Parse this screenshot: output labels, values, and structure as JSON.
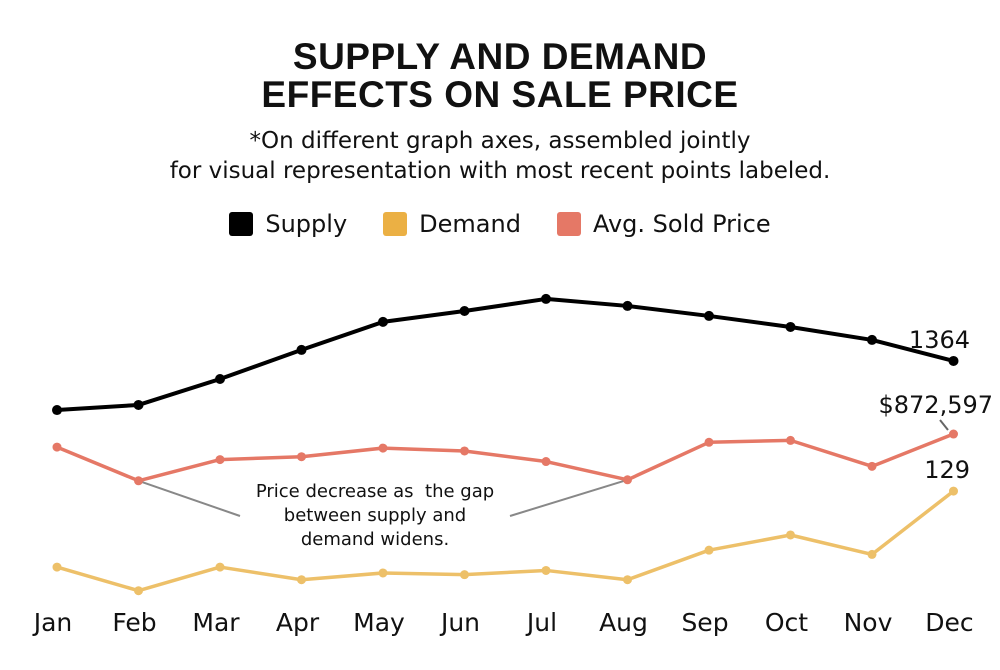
{
  "chart_data": {
    "type": "line",
    "title": "SUPPLY AND DEMAND EFFECTS ON SALE PRICE",
    "title_lines": [
      "SUPPLY AND DEMAND",
      "EFFECTS ON SALE PRICE"
    ],
    "subtitle_lines": [
      "*On different graph axes, assembled jointly",
      "for visual representation with most recent points labeled."
    ],
    "categories": [
      "Jan",
      "Feb",
      "Mar",
      "Apr",
      "May",
      "Jun",
      "Jul",
      "Aug",
      "Sep",
      "Oct",
      "Nov",
      "Dec"
    ],
    "legend_placement": "top-center",
    "grid": false,
    "series": [
      {
        "name": "Supply",
        "color": "#000000",
        "ylim": [
          0,
          1826
        ],
        "values": [
          1084,
          1113,
          1261,
          1427,
          1587,
          1649,
          1718,
          1678,
          1621,
          1558,
          1484,
          1364
        ],
        "last_label": "1364"
      },
      {
        "name": "Demand",
        "color": "#EDC069",
        "legend_color": "#EBB044",
        "ylim": [
          0,
          379
        ],
        "values": [
          39,
          11,
          39,
          24,
          32,
          30,
          35,
          24,
          59,
          77,
          54,
          129
        ],
        "last_label": "129"
      },
      {
        "name": "Avg. Sold Price",
        "color": "#E57866",
        "ylim": [
          700000,
          1032800
        ],
        "values": [
          859000,
          824000,
          846000,
          849000,
          858000,
          855000,
          844000,
          825000,
          864000,
          866000,
          839000,
          872597
        ],
        "last_label": "$872,597"
      }
    ],
    "annotation": {
      "lines": [
        "Price decrease as  the gap",
        "between supply and",
        "demand widens."
      ],
      "points_to": [
        "Feb",
        "Aug"
      ],
      "series": "Avg. Sold Price",
      "leader_color": "#888888"
    }
  }
}
